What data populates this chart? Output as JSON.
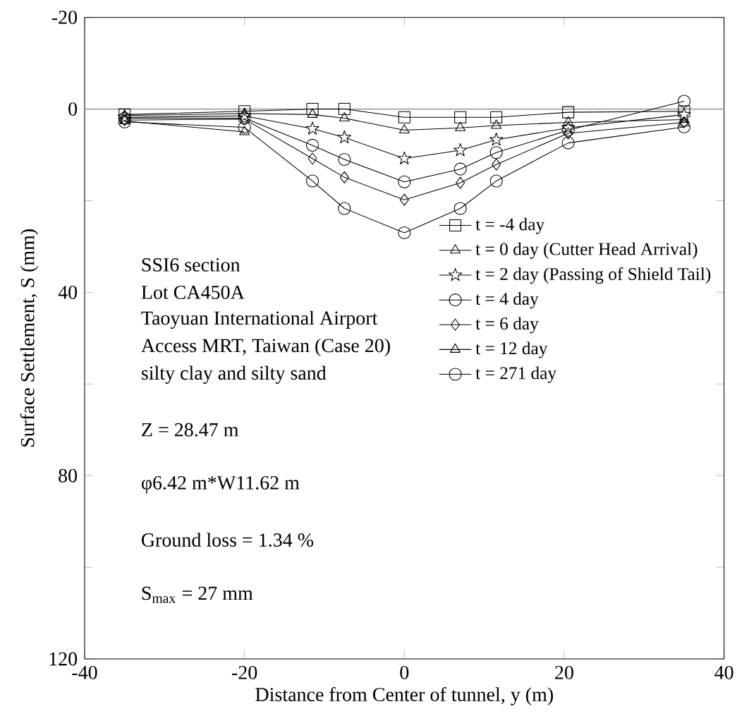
{
  "chart_data": {
    "type": "line",
    "xlabel": "Distance from Center of tunnel, y (m)",
    "ylabel": "Surface Settlement, S (mm)",
    "x": [
      -35,
      -20,
      -11.5,
      -7.5,
      0,
      7,
      11.5,
      20.5,
      35
    ],
    "xlim": [
      -40,
      40
    ],
    "xticks": [
      -40,
      -20,
      0,
      20,
      40
    ],
    "ylim": [
      120,
      -20
    ],
    "yticks": [
      -20,
      0,
      {
        "value": 20,
        "label": null
      },
      40,
      {
        "value": 60,
        "label": null
      },
      80,
      {
        "value": 100,
        "label": null
      },
      120
    ],
    "series": [
      {
        "name": "t = -4 day",
        "color": "#000000",
        "marker": "square",
        "values": [
          1.2,
          0.5,
          0,
          0,
          1.8,
          1.8,
          1.8,
          0.7,
          0.5
        ]
      },
      {
        "name": "t = 0 day (Cutter Head Arrival)",
        "color": "#000000",
        "marker": "triangle",
        "values": [
          1.4,
          1,
          1.2,
          2,
          4.6,
          4.1,
          3.6,
          2.9,
          2.3
        ]
      },
      {
        "name": "t = 2 day (Passing of Shield Tail)",
        "color": "#000000",
        "marker": "star",
        "values": [
          1.8,
          1.5,
          4.3,
          6.2,
          10.8,
          9,
          6.7,
          4.1,
          1.2
        ]
      },
      {
        "name": "t = 4 day",
        "color": "#000000",
        "marker": "circle",
        "values": [
          2,
          2,
          7.9,
          11,
          15.9,
          13.1,
          9.5,
          4.6,
          -1.7
        ]
      },
      {
        "name": "t = 6 day",
        "color": "#000000",
        "marker": "diamond",
        "values": [
          2.4,
          2.2,
          10.8,
          14.9,
          19.8,
          16.1,
          12.1,
          5.3,
          2.9
        ]
      },
      {
        "name": "t = 12 day",
        "color": "#000000",
        "marker": "triangle",
        "values": [
          2.6,
          5,
          null,
          null,
          null,
          null,
          null,
          null,
          3.1
        ]
      },
      {
        "name": "t = 271 day",
        "color": "#000000",
        "marker": "circle",
        "values": [
          2.8,
          4,
          15.7,
          21.7,
          27,
          21.7,
          15.7,
          7.4,
          3.9
        ]
      }
    ],
    "ref_lines": [
      {
        "axis": "y",
        "value": 0,
        "color": "#a0a0a0"
      }
    ],
    "annotations": [
      "SSI6 section",
      "Lot CA450A",
      "Taoyuan International Airport",
      "Access MRT, Taiwan (Case 20)",
      "silty clay and silty sand",
      "Z = 28.47 m",
      "φ6.42 m*W11.62 m",
      "Ground loss = 1.34 %",
      "S$_{max}$ = 27 mm"
    ],
    "legend": "right",
    "grid": false,
    "line_style": "solid"
  }
}
